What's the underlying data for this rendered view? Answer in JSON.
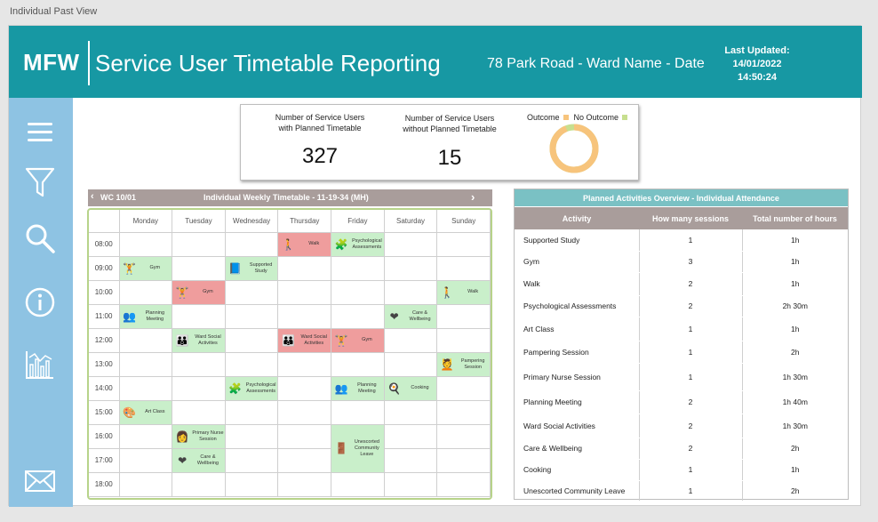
{
  "page_tab": "Individual Past View",
  "header": {
    "logo": "MFW",
    "title": "Service User Timetable Reporting",
    "subtitle": "78 Park Road  - Ward Name - Date",
    "last_updated_label": "Last Updated:",
    "last_updated_date": "14/01/2022",
    "last_updated_time": "14:50:24"
  },
  "sidebar": [
    "menu-icon",
    "filter-icon",
    "search-icon",
    "info-icon",
    "chart-icon",
    "mail-icon"
  ],
  "kpi": {
    "planned_label_1": "Number of Service Users",
    "planned_label_2": "with Planned Timetable",
    "planned_value": "327",
    "unplanned_label_1": "Number of Service Users",
    "unplanned_label_2": "without Planned Timetable",
    "unplanned_value": "15",
    "legend_outcome": "Outcome",
    "legend_no_outcome": "No Outcome",
    "outcome_fraction": 0.94,
    "color_outcome": "#f7c47c",
    "color_no_outcome": "#c7df8f"
  },
  "timetable": {
    "prev": "‹",
    "week": "WC 10/01",
    "title": "Individual Weekly Timetable - 11-19-34 (MH)",
    "next": "›",
    "days": [
      "Monday",
      "Tuesday",
      "Wednesday",
      "Thursday",
      "Friday",
      "Saturday",
      "Sunday"
    ],
    "times": [
      "08:00",
      "09:00",
      "10:00",
      "11:00",
      "12:00",
      "13:00",
      "14:00",
      "15:00",
      "16:00",
      "17:00",
      "18:00"
    ]
  },
  "events": {
    "thu_0800": "Walk",
    "fri_0800": "Psychological Assessments",
    "mon_0900": "Gym",
    "wed_0900": "Supported Study",
    "tue_1000": "Gym",
    "sun_1000": "Walk",
    "mon_1100": "Planning Meeting",
    "sat_1100": "Care & Wellbeing",
    "tue_1200": "Ward Social Activities",
    "thu_1200": "Ward Social Activities",
    "fri_1200": "Gym",
    "sun_1300": "Pampering Session",
    "wed_1400": "Psychological Assessments",
    "fri_1400": "Planning Meeting",
    "sat_1400": "Cooking",
    "mon_1500": "Art Class",
    "tue_1600": "Primary Nurse Session",
    "tue_1700": "Care & Wellbeing",
    "fri_1600": "Unescorted Community Leave"
  },
  "activities": {
    "title": "Planned Activities Overview - Individual Attendance",
    "headers": [
      "Activity",
      "How many sessions",
      "Total number of hours"
    ],
    "rows": [
      [
        "Supported Study",
        "1",
        "1h"
      ],
      [
        "Gym",
        "3",
        "1h"
      ],
      [
        "Walk",
        "2",
        "1h"
      ],
      [
        "Psychological Assessments",
        "2",
        "2h 30m"
      ],
      [
        "Art Class",
        "1",
        "1h"
      ],
      [
        "Pampering Session",
        "1",
        "2h"
      ],
      [
        "Primary Nurse Session",
        "1",
        "1h 30m"
      ],
      [
        "Planning Meeting",
        "2",
        "1h 40m"
      ],
      [
        "Ward Social Activities",
        "2",
        "1h 30m"
      ],
      [
        "Care & Wellbeing",
        "2",
        "2h"
      ],
      [
        "Cooking",
        "1",
        "1h"
      ],
      [
        "Unescorted Community Leave",
        "1",
        "2h"
      ]
    ]
  }
}
